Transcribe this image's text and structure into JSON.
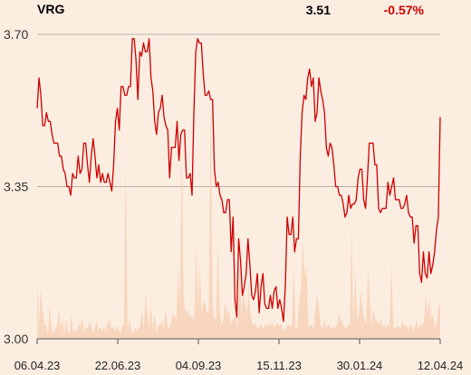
{
  "header": {
    "ticker": "VRG",
    "last_price": "3.51",
    "change": "-0.57%"
  },
  "colors": {
    "background": "#fcede1",
    "price_line": "#cc0000",
    "volume_area": "#f8d6bd",
    "change_negative": "#cc0000",
    "gridline": "#b8aea6"
  },
  "chart_data": {
    "type": "line",
    "title": "",
    "xlabel": "",
    "ylabel": "",
    "ylim": [
      3.0,
      3.7
    ],
    "yticks": [
      3.0,
      3.35,
      3.7
    ],
    "ytick_labels": [
      "3.00",
      "3.35",
      "3.70"
    ],
    "xticks": [
      "06.04.23",
      "22.06.23",
      "04.09.23",
      "15.11.23",
      "30.01.24",
      "12.04.24"
    ],
    "grid": "horizontal",
    "series": [
      {
        "values": [
          3.53,
          3.6,
          3.56,
          3.49,
          3.49,
          3.52,
          3.5,
          3.5,
          3.47,
          3.45,
          3.45,
          3.45,
          3.42,
          3.42,
          3.39,
          3.38,
          3.35,
          3.35,
          3.33,
          3.38,
          3.37,
          3.37,
          3.42,
          3.38,
          3.39,
          3.45,
          3.45,
          3.4,
          3.36,
          3.42,
          3.46,
          3.42,
          3.37,
          3.4,
          3.36,
          3.38,
          3.36,
          3.36,
          3.38,
          3.36,
          3.34,
          3.4,
          3.5,
          3.53,
          3.48,
          3.58,
          3.58,
          3.56,
          3.56,
          3.58,
          3.58,
          3.69,
          3.69,
          3.64,
          3.55,
          3.66,
          3.65,
          3.68,
          3.66,
          3.66,
          3.69,
          3.6,
          3.57,
          3.5,
          3.47,
          3.52,
          3.53,
          3.56,
          3.51,
          3.49,
          3.48,
          3.37,
          3.44,
          3.44,
          3.44,
          3.5,
          3.41,
          3.47,
          3.48,
          3.48,
          3.37,
          3.37,
          3.38,
          3.33,
          3.52,
          3.66,
          3.69,
          3.68,
          3.68,
          3.61,
          3.56,
          3.56,
          3.57,
          3.55,
          3.55,
          3.39,
          3.35,
          3.36,
          3.33,
          3.32,
          3.29,
          3.29,
          3.32,
          3.32,
          3.2,
          3.28,
          3.09,
          3.05,
          3.23,
          3.18,
          3.1,
          3.12,
          3.15,
          3.23,
          3.17,
          3.1,
          3.09,
          3.11,
          3.15,
          3.06,
          3.12,
          3.15,
          3.08,
          3.07,
          3.07,
          3.1,
          3.07,
          3.11,
          3.12,
          3.07,
          3.09,
          3.07,
          3.04,
          3.12,
          3.28,
          3.24,
          3.24,
          3.28,
          3.2,
          3.23,
          3.23,
          3.42,
          3.52,
          3.56,
          3.55,
          3.6,
          3.62,
          3.58,
          3.6,
          3.5,
          3.52,
          3.6,
          3.57,
          3.55,
          3.52,
          3.44,
          3.42,
          3.45,
          3.44,
          3.4,
          3.35,
          3.35,
          3.33,
          3.33,
          3.31,
          3.28,
          3.29,
          3.33,
          3.3,
          3.31,
          3.31,
          3.32,
          3.37,
          3.39,
          3.39,
          3.32,
          3.3,
          3.37,
          3.45,
          3.45,
          3.45,
          3.4,
          3.4,
          3.3,
          3.29,
          3.3,
          3.3,
          3.3,
          3.36,
          3.33,
          3.35,
          3.37,
          3.32,
          3.32,
          3.32,
          3.3,
          3.3,
          3.31,
          3.33,
          3.29,
          3.28,
          3.28,
          3.22,
          3.26,
          3.26,
          3.15,
          3.13,
          3.2,
          3.15,
          3.14,
          3.2,
          3.15,
          3.17,
          3.2,
          3.25,
          3.28,
          3.51
        ]
      }
    ],
    "volume_series": [
      0.22,
      0.05,
      0.2,
      0.12,
      0.05,
      0.06,
      0.02,
      0.14,
      0.04,
      0.02,
      0.04,
      0.05,
      0.12,
      0.04,
      0.08,
      0.02,
      0.08,
      0.03,
      0.02,
      0.1,
      0.02,
      0.04,
      0.03,
      0.06,
      0.05,
      0.09,
      0.02,
      0.05,
      0.04,
      0.07,
      0.05,
      0.02,
      0.05,
      0.07,
      0.03,
      0.05,
      0.03,
      0.05,
      0.03,
      0.06,
      0.08,
      0.04,
      0.05,
      0.03,
      0.05,
      0.04,
      0.02,
      0.05,
      0.06,
      0.72,
      0.03,
      0.08,
      0.04,
      0.02,
      0.05,
      0.03,
      0.04,
      0.05,
      0.12,
      0.04,
      0.18,
      0.1,
      0.04,
      0.14,
      0.04,
      0.1,
      0.02,
      0.06,
      0.05,
      0.08,
      0.04,
      0.12,
      0.06,
      0.04,
      0.06,
      0.1,
      0.09,
      0.08,
      0.28,
      0.14,
      0.78,
      0.18,
      0.1,
      0.12,
      0.1,
      0.09,
      0.09,
      0.07,
      0.38,
      0.12,
      0.3,
      0.1,
      0.15,
      0.15,
      0.1,
      0.12,
      0.96,
      0.16,
      0.08,
      0.08,
      0.38,
      0.12,
      0.05,
      0.08,
      0.15,
      0.1,
      0.12,
      0.06,
      0.07,
      0.09,
      0.08,
      0.04,
      0.3,
      0.09,
      0.2,
      0.14,
      0.1,
      0.2,
      0.1,
      0.06,
      0.06,
      0.06,
      0.04,
      0.05,
      0.06,
      0.04,
      0.06,
      0.05,
      0.06,
      0.05,
      0.07,
      0.04,
      0.06,
      0.06,
      0.05,
      0.06,
      0.04,
      0.03,
      0.05,
      0.06,
      0.05,
      0.05,
      0.3,
      0.04,
      0.05,
      0.15,
      0.2,
      0.4,
      0.25,
      0.3,
      0.04,
      0.06,
      0.05,
      0.04,
      0.12,
      0.18,
      0.12,
      0.05,
      0.04,
      0.08,
      0.04,
      0.06,
      0.05,
      0.04,
      0.05,
      0.04,
      0.06,
      0.1,
      0.08,
      0.06,
      0.05,
      0.04,
      0.06,
      0.05,
      0.45,
      0.05,
      0.28,
      0.07,
      0.1,
      0.2,
      0.12,
      0.08,
      0.06,
      0.28,
      0.17,
      0.04,
      0.12,
      0.08,
      0.07,
      0.06,
      0.08,
      0.05,
      0.06,
      0.04,
      0.06,
      0.05,
      0.3,
      0.05,
      0.04,
      0.05,
      0.05,
      0.04,
      0.07,
      0.05,
      0.06,
      0.04,
      0.05,
      0.06,
      0.03,
      0.05,
      0.08,
      0.04,
      0.06,
      0.05,
      0.07,
      0.18,
      0.1,
      0.16,
      0.08,
      0.1,
      0.05,
      0.06,
      0.12,
      0.16
    ]
  }
}
